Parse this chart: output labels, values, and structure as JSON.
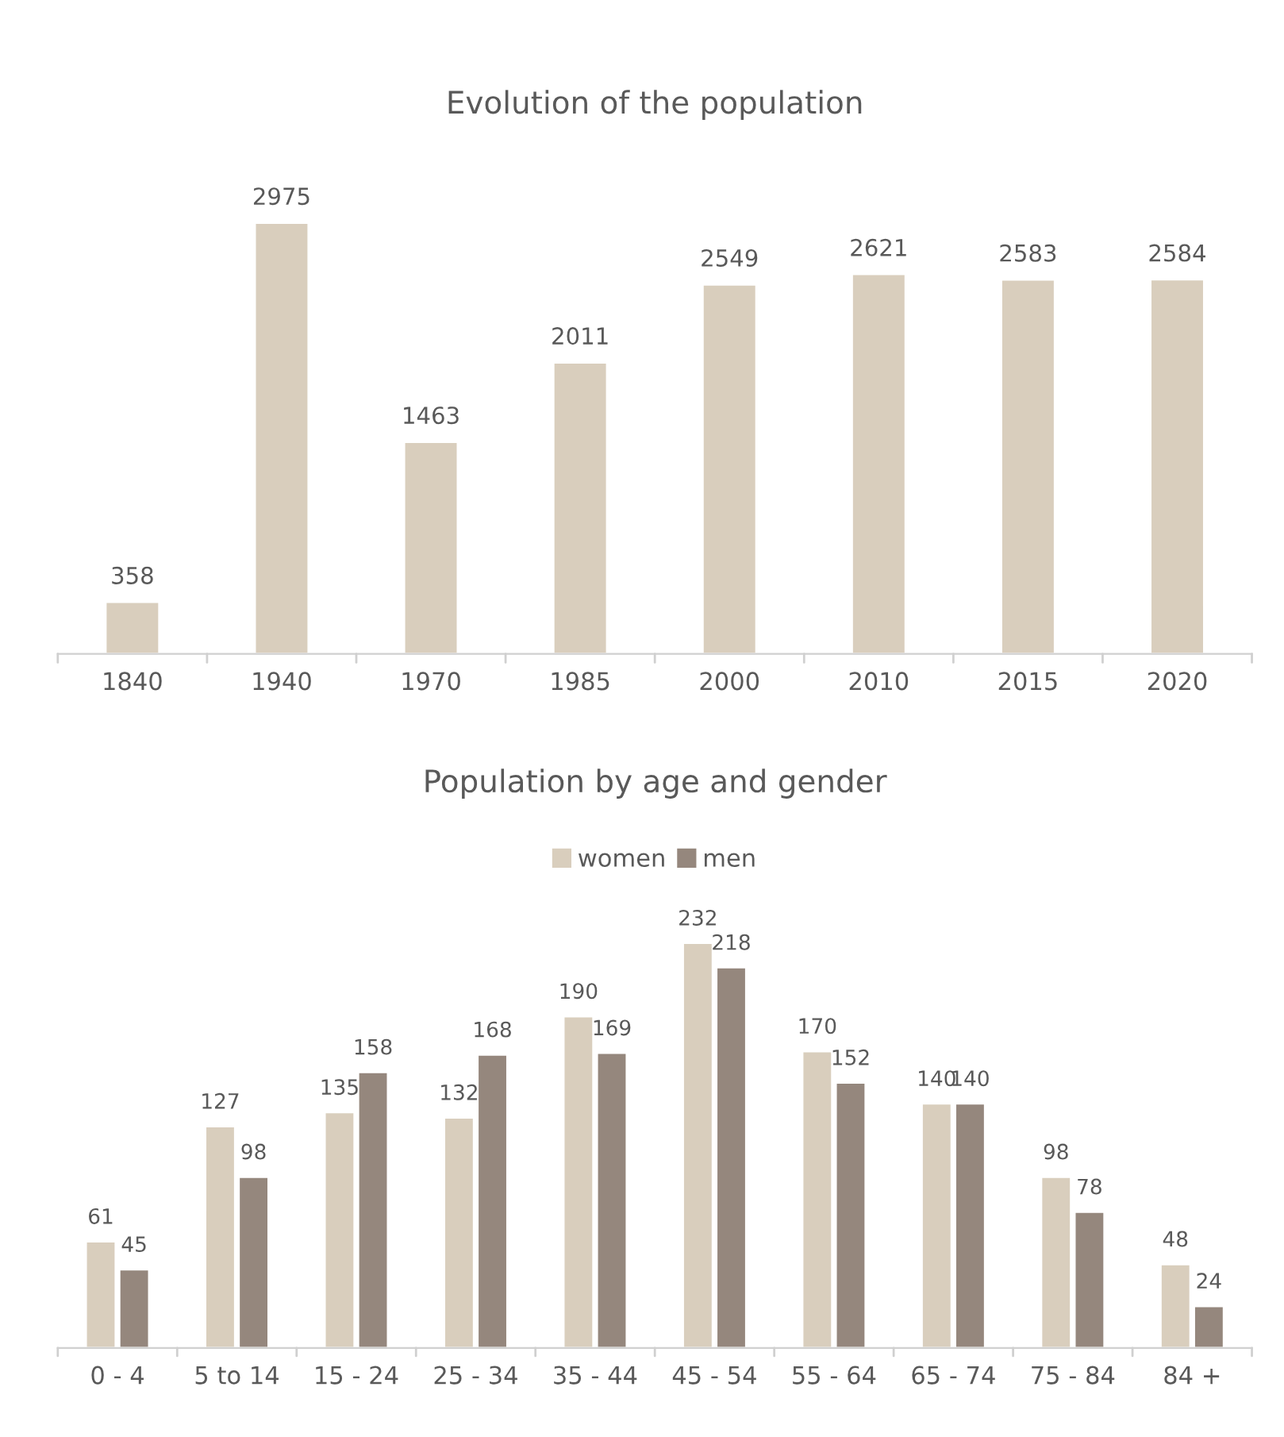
{
  "chart_data": [
    {
      "type": "bar",
      "title": "Evolution of the population",
      "categories": [
        "1840",
        "1940",
        "1970",
        "1985",
        "2000",
        "2010",
        "2015",
        "2020"
      ],
      "series": [
        {
          "color": "#d9cebd",
          "values": [
            358,
            2975,
            1463,
            2011,
            2549,
            2621,
            2583,
            2584
          ]
        }
      ],
      "data_labels": true,
      "grid": false,
      "legend": false
    },
    {
      "type": "bar",
      "title": "Population by age and gender",
      "categories": [
        "0 - 4",
        "5 to 14",
        "15 - 24",
        "25 - 34",
        "35 - 44",
        "45 - 54",
        "55 - 64",
        "65 - 74",
        "75 - 84",
        "84 +"
      ],
      "series": [
        {
          "name": "women",
          "color": "#d9cebd",
          "values": [
            61,
            127,
            135,
            132,
            190,
            232,
            170,
            140,
            98,
            48
          ]
        },
        {
          "name": "men",
          "color": "#95877d",
          "values": [
            45,
            98,
            158,
            168,
            169,
            218,
            152,
            140,
            78,
            24
          ]
        }
      ],
      "data_labels": true,
      "grid": false,
      "legend": "top"
    }
  ]
}
